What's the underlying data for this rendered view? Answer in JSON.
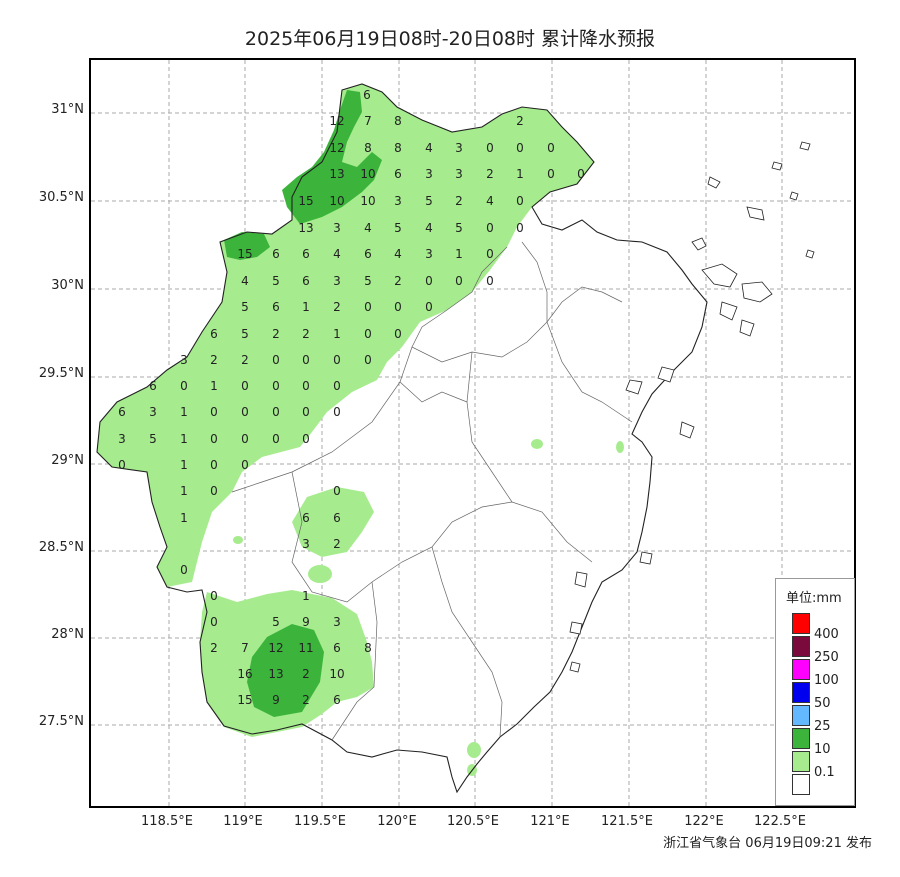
{
  "title": "2025年06月19日08时-20日08时 累计降水预报",
  "publisher": "浙江省气象台 06月19日09:21 发布",
  "axes": {
    "lat_labels": [
      "31°N",
      "30.5°N",
      "30°N",
      "29.5°N",
      "29°N",
      "28.5°N",
      "28°N",
      "27.5°N"
    ],
    "lon_labels": [
      "118.5°E",
      "119°E",
      "119.5°E",
      "120°E",
      "120.5°E",
      "121°E",
      "121.5°E",
      "122°E",
      "122.5°E"
    ]
  },
  "legend": {
    "title": "单位:mm",
    "items": [
      {
        "label": "400",
        "color": "#ff0000"
      },
      {
        "label": "250",
        "color": "#7a0a3c"
      },
      {
        "label": "100",
        "color": "#ff00ff"
      },
      {
        "label": "50",
        "color": "#0000ee"
      },
      {
        "label": "25",
        "color": "#64b8ff"
      },
      {
        "label": "10",
        "color": "#3cb43c"
      },
      {
        "label": "0.1",
        "color": "#a6ec8e"
      },
      {
        "label": "",
        "color": "#ffffff"
      }
    ]
  },
  "rain_colors": {
    "light": "#a6ec8e",
    "moderate": "#3cb43c"
  },
  "station_values": [
    "6",
    "12",
    "7",
    "8",
    "2",
    "12",
    "8",
    "8",
    "4",
    "3",
    "0",
    "0",
    "0",
    "13",
    "10",
    "6",
    "3",
    "3",
    "2",
    "1",
    "0",
    "0",
    "15",
    "10",
    "10",
    "3",
    "5",
    "2",
    "4",
    "0",
    "13",
    "3",
    "4",
    "5",
    "4",
    "5",
    "0",
    "0",
    "15",
    "6",
    "6",
    "4",
    "6",
    "4",
    "3",
    "1",
    "0",
    "4",
    "5",
    "6",
    "3",
    "5",
    "2",
    "0",
    "0",
    "0",
    "5",
    "6",
    "1",
    "2",
    "0",
    "0",
    "0",
    "6",
    "5",
    "2",
    "2",
    "1",
    "0",
    "0",
    "3",
    "2",
    "2",
    "0",
    "0",
    "0",
    "0",
    "6",
    "0",
    "1",
    "0",
    "0",
    "0",
    "0",
    "6",
    "3",
    "1",
    "0",
    "0",
    "0",
    "0",
    "0",
    "3",
    "5",
    "1",
    "0",
    "0",
    "0",
    "0",
    "0",
    "1",
    "0",
    "0",
    "1",
    "0",
    "0",
    "1",
    "6",
    "6",
    "3",
    "2",
    "0",
    "0",
    "1",
    "0",
    "5",
    "9",
    "3",
    "2",
    "7",
    "12",
    "11",
    "6",
    "8",
    "16",
    "13",
    "2",
    "10",
    "15",
    "9",
    "2",
    "6"
  ]
}
